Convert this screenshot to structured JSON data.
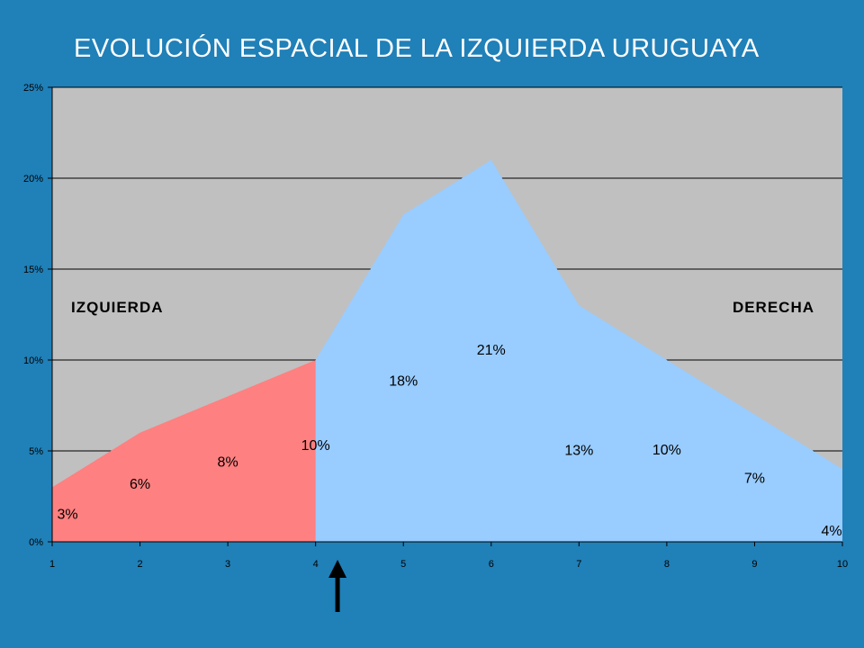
{
  "title": "EVOLUCIÓN ESPACIAL DE LA IZQUIERDA URUGUAYA",
  "colors": {
    "background": "#2080b8",
    "plot_area": "#c0c0c0",
    "left_series": "#ff8080",
    "right_series": "#99ccff",
    "arrow": "#000000"
  },
  "chart_data": {
    "type": "area",
    "x": [
      1,
      2,
      3,
      4,
      5,
      6,
      7,
      8,
      9,
      10
    ],
    "values": [
      3,
      6,
      8,
      10,
      18,
      21,
      13,
      10,
      7,
      4
    ],
    "data_labels": [
      "3%",
      "6%",
      "8%",
      "10%",
      "18%",
      "21%",
      "13%",
      "10%",
      "7%",
      "4%"
    ],
    "series": [
      {
        "x": [
          1,
          2,
          3,
          4,
          5
        ],
        "values": [
          3,
          6,
          8,
          10,
          0
        ],
        "color": "#ff8080"
      },
      {
        "x": [
          4,
          5,
          6,
          7,
          8,
          9,
          10
        ],
        "values": [
          10,
          18,
          21,
          13,
          10,
          7,
          4
        ],
        "color": "#99ccff"
      }
    ],
    "xlabel": "",
    "ylabel": "",
    "xlim": [
      1,
      10
    ],
    "ylim": [
      0,
      25
    ],
    "x_ticks": [
      "1",
      "2",
      "3",
      "4",
      "5",
      "6",
      "7",
      "8",
      "9",
      "10"
    ],
    "y_ticks": [
      "0%",
      "5%",
      "10%",
      "15%",
      "20%",
      "25%"
    ],
    "grid": true,
    "annotations": {
      "left_region": "IZQUIERDA",
      "right_region": "DERECHA",
      "arrow_at_x": 4.25
    }
  }
}
